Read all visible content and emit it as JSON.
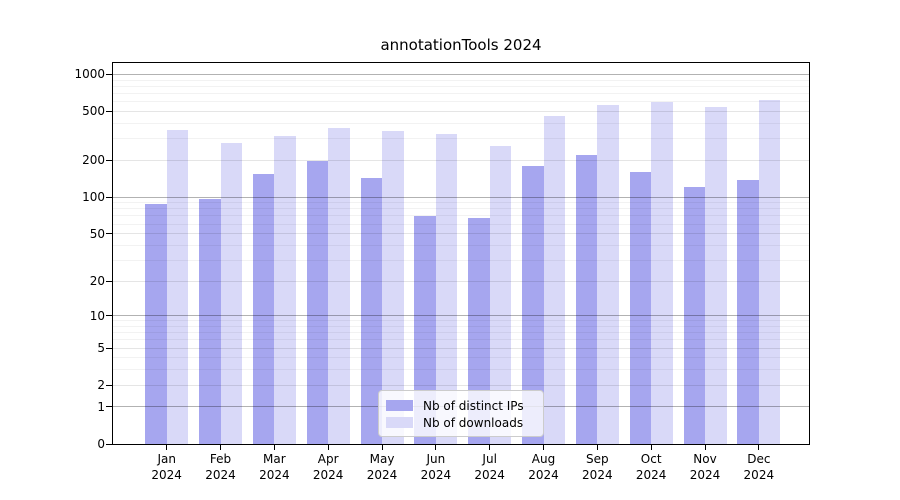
{
  "chart_data": {
    "type": "bar",
    "title": "annotationTools 2024",
    "x_months": [
      "Jan",
      "Feb",
      "Mar",
      "Apr",
      "May",
      "Jun",
      "Jul",
      "Aug",
      "Sep",
      "Oct",
      "Nov",
      "Dec"
    ],
    "x_year": "2024",
    "y_scale": "symlog",
    "y_ticks": [
      0,
      1,
      2,
      5,
      10,
      20,
      50,
      100,
      200,
      500,
      1000
    ],
    "ylim": [
      0,
      1260
    ],
    "grid": true,
    "legend_position": "lower center",
    "series": [
      {
        "name": "Nb of distinct IPs",
        "color": "#a6a6ef",
        "values": [
          87,
          97,
          155,
          196,
          143,
          70,
          67,
          179,
          222,
          159,
          121,
          138
        ]
      },
      {
        "name": "Nb of downloads",
        "color": "#d9d9f8",
        "values": [
          353,
          275,
          317,
          365,
          346,
          326,
          260,
          462,
          566,
          596,
          546,
          619
        ]
      }
    ]
  }
}
